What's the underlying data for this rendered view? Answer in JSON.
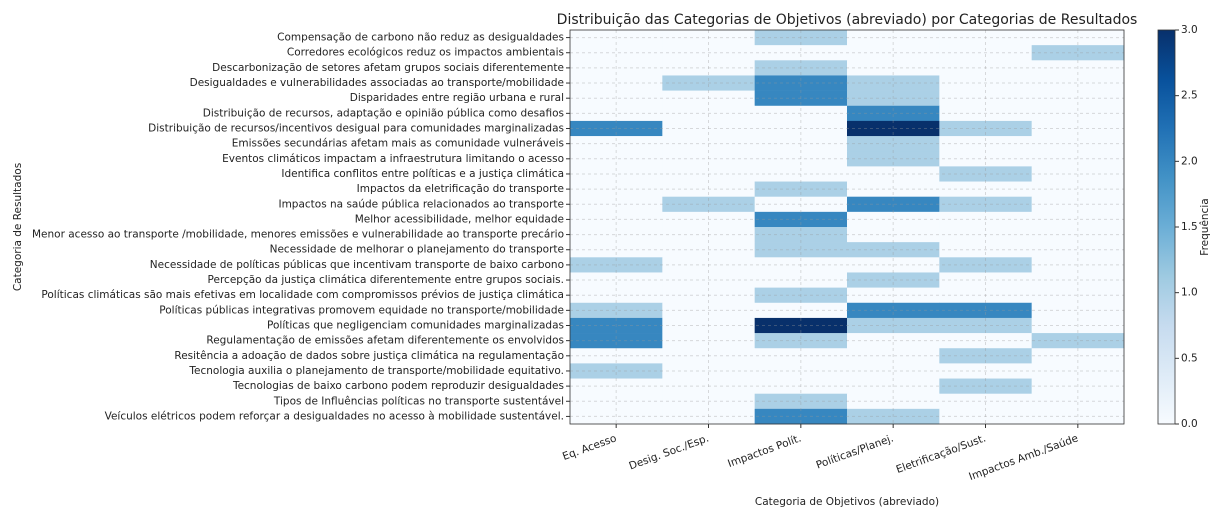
{
  "chart_data": {
    "type": "heatmap",
    "title": "Distribuição das Categorias de Objetivos (abreviado) por Categorias de Resultados",
    "x_label": "Categoria de Objetivos (abreviado)",
    "y_label": "Categoria de Resultados",
    "colorbar_label": "Frequência",
    "colormap": "Blues",
    "grid": true,
    "x": [
      "Eq. Acesso",
      "Desig. Soc./Esp.",
      "Impactos Polít.",
      "Políticas/Planej.",
      "Eletrificação/Sust.",
      "Impactos Amb./Saúde"
    ],
    "y": [
      "Compensação de carbono não reduz as desigualdades",
      "Corredores ecológicos reduz os impactos ambientais",
      "Descarbonização de setores afetam grupos sociais diferentemente",
      "Desigualdades e vulnerabilidades associadas ao transporte/mobilidade",
      "Disparidades entre região urbana e rural",
      "Distribuição de recursos, adaptação e opinião pública como desafios",
      "Distribuição de recursos/incentivos desigual para comunidades marginalizadas",
      "Emissões secundárias afetam mais as comunidade vulneráveis",
      "Eventos climáticos impactam a infraestrutura limitando o acesso",
      "Identifica conflitos entre políticas e a justiça climática",
      "Impactos da eletrificação do transporte",
      "Impactos na saúde pública relacionados ao transporte",
      "Melhor acessibilidade, melhor equidade",
      "Menor acesso ao transporte /mobilidade, menores emissões e vulnerabilidade ao transporte precário",
      "Necessidade de melhorar o planejamento do transporte",
      "Necessidade de políticas públicas que incentivam transporte de baixo carbono",
      "Percepção da justiça climática diferentemente entre grupos sociais.",
      "Políticas climáticas são mais efetivas em localidade com compromissos prévios de justiça climática",
      "Políticas públicas integrativas promovem equidade no transporte/mobilidade",
      "Políticas que negligenciam comunidades marginalizadas",
      "Regulamentação de emissões afetam diferentemente os envolvidos",
      "Resitência a adoação de dados sobre justiça climática na regulamentação",
      "Tecnologia auxilia o planejamento de transporte/mobilidade equitativo.",
      "Tecnologias de baixo carbono podem reproduzir desigualdades",
      "Tipos de Influências políticas no transporte sustentável",
      "Veículos elétricos podem reforçar a desigualdades no acesso à mobilidade sustentável."
    ],
    "z": [
      [
        0,
        0,
        1,
        0,
        0,
        0
      ],
      [
        0,
        0,
        0,
        0,
        0,
        1
      ],
      [
        0,
        0,
        1,
        0,
        0,
        0
      ],
      [
        0,
        1,
        2,
        1,
        0,
        0
      ],
      [
        0,
        0,
        2,
        1,
        0,
        0
      ],
      [
        0,
        0,
        0,
        2,
        0,
        0
      ],
      [
        2,
        0,
        0,
        3,
        1,
        0
      ],
      [
        0,
        0,
        0,
        1,
        0,
        0
      ],
      [
        0,
        0,
        0,
        1,
        0,
        0
      ],
      [
        0,
        0,
        0,
        0,
        1,
        0
      ],
      [
        0,
        0,
        1,
        0,
        0,
        0
      ],
      [
        0,
        1,
        0,
        2,
        1,
        0
      ],
      [
        0,
        0,
        2,
        0,
        0,
        0
      ],
      [
        0,
        0,
        1,
        0,
        0,
        0
      ],
      [
        0,
        0,
        1,
        1,
        0,
        0
      ],
      [
        1,
        0,
        0,
        0,
        1,
        0
      ],
      [
        0,
        0,
        0,
        1,
        0,
        0
      ],
      [
        0,
        0,
        1,
        0,
        0,
        0
      ],
      [
        1,
        0,
        0,
        2,
        2,
        0
      ],
      [
        2,
        0,
        3,
        1,
        1,
        0
      ],
      [
        2,
        0,
        1,
        0,
        0,
        1
      ],
      [
        0,
        0,
        0,
        0,
        1,
        0
      ],
      [
        1,
        0,
        0,
        0,
        0,
        0
      ],
      [
        0,
        0,
        0,
        0,
        1,
        0
      ],
      [
        0,
        0,
        1,
        0,
        0,
        0
      ],
      [
        0,
        0,
        2,
        1,
        0,
        0
      ]
    ],
    "clim": [
      0,
      3
    ],
    "colorbar_ticks": [
      {
        "value": 0,
        "label": "0.0"
      },
      {
        "value": 0.5,
        "label": "0.5"
      },
      {
        "value": 1,
        "label": "1.0"
      },
      {
        "value": 1.5,
        "label": "1.5"
      },
      {
        "value": 2,
        "label": "2.0"
      },
      {
        "value": 2.5,
        "label": "2.5"
      },
      {
        "value": 3,
        "label": "3.0"
      }
    ]
  }
}
